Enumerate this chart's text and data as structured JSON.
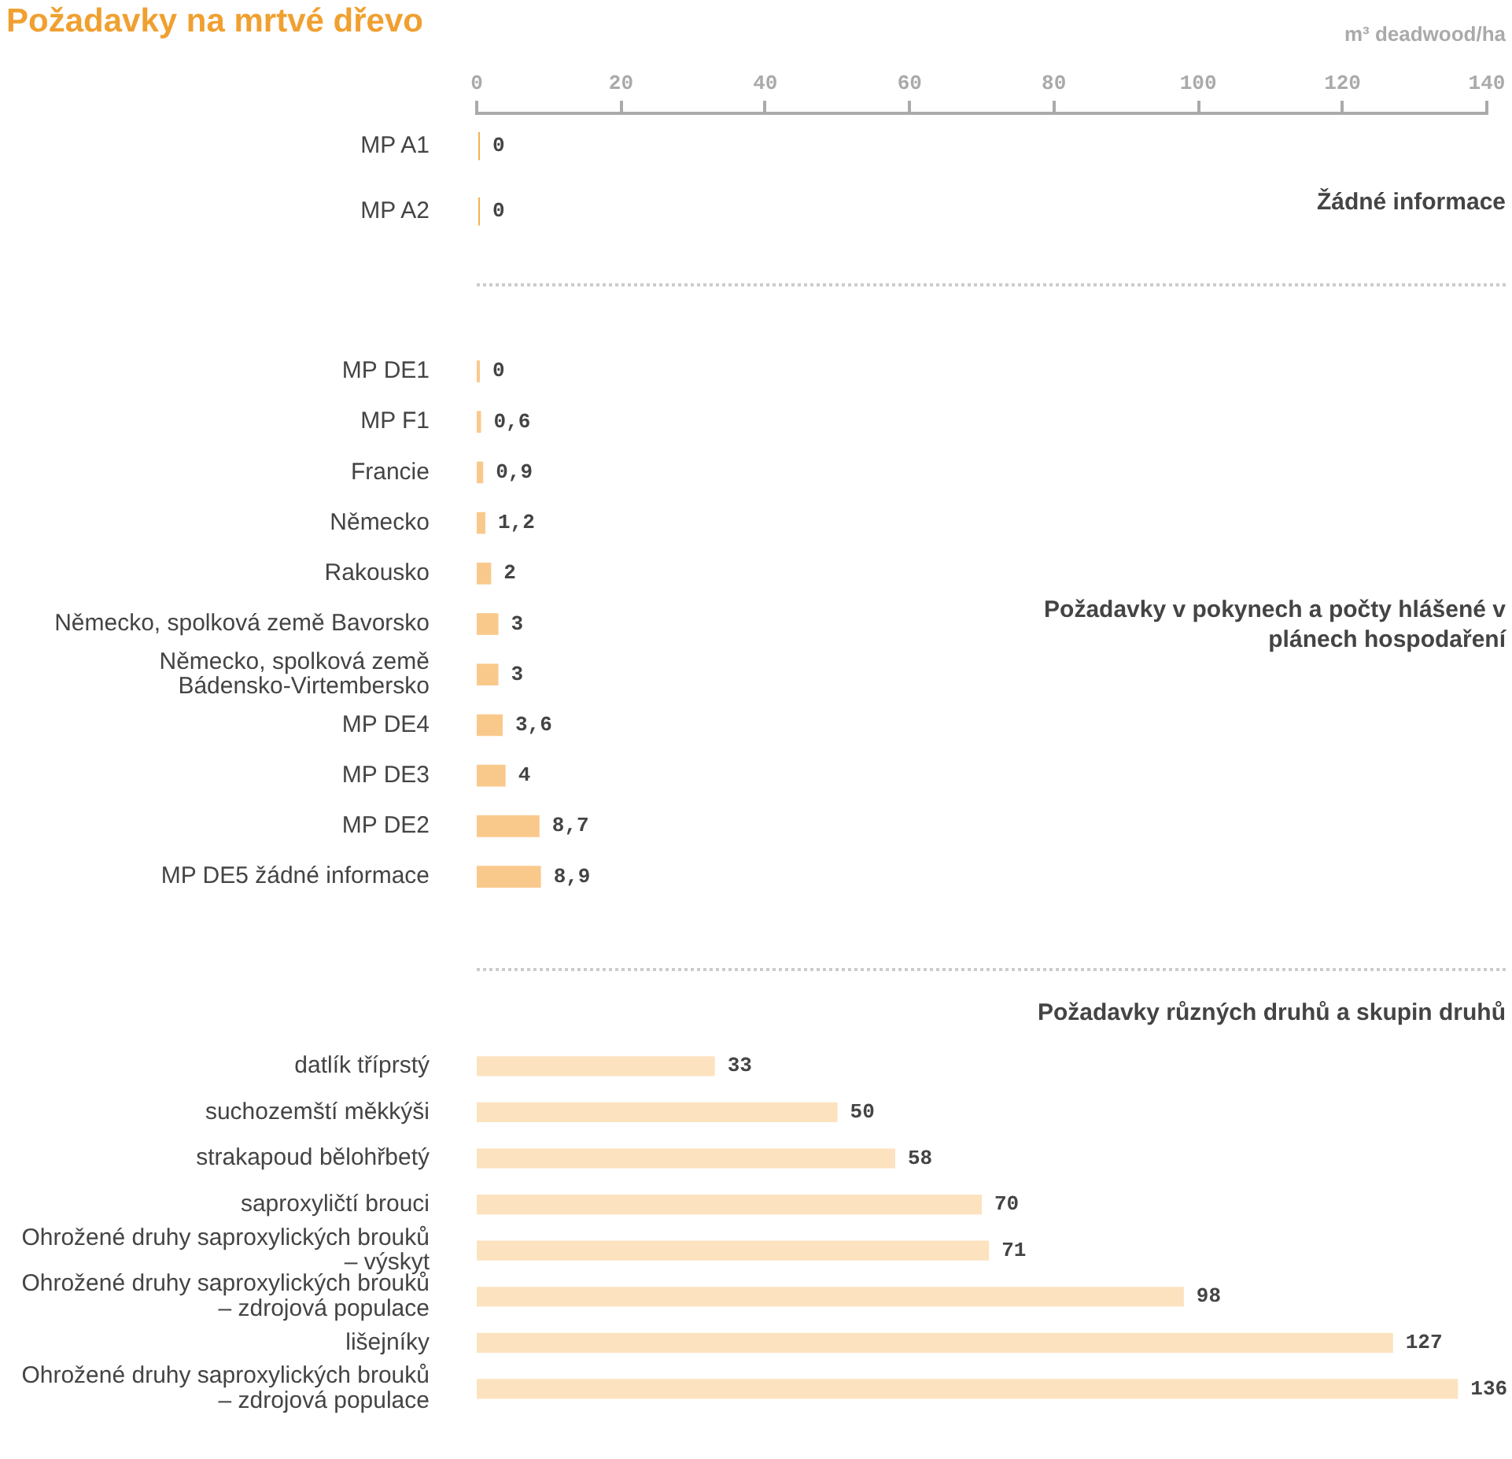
{
  "chart_data": [
    {
      "type": "bar",
      "title": "Požadavky na mrtvé dřevo",
      "xlabel": "m³ deadwood/ha",
      "orientation": "horizontal",
      "categories": [
        "MP A1",
        "MP A2"
      ],
      "values": [
        0,
        0
      ],
      "value_labels": [
        "0",
        "0"
      ],
      "color": "#f5b24e",
      "xlim": [
        0,
        140
      ],
      "xticks": [
        0,
        20,
        40,
        60,
        80,
        100,
        120,
        140
      ],
      "annotations": [
        "Žádné informace"
      ]
    },
    {
      "type": "bar",
      "orientation": "horizontal",
      "categories": [
        "MP DE1",
        "MP F1",
        "Francie",
        "Německo",
        "Rakousko",
        "Německo, spolková země Bavorsko",
        "Německo, spolková země Bádensko-Virtembersko",
        "MP DE4",
        "MP DE3",
        "MP DE2",
        "MP DE5 žádné informace"
      ],
      "values": [
        0,
        0.6,
        0.9,
        1.2,
        2,
        3,
        3,
        3.6,
        4,
        8.7,
        8.9
      ],
      "value_labels": [
        "0",
        "0,6",
        "0,9",
        "1,2",
        "2",
        "3",
        "3",
        "3,6",
        "4",
        "8,7",
        "8,9"
      ],
      "color": "#f9c98c",
      "xlim": [
        0,
        140
      ],
      "xticks": [
        0,
        20,
        40,
        60,
        80,
        100,
        120,
        140
      ],
      "tick_labels": "y",
      "annotations": [
        "Požadavky v pokynech a počty hlášené v plánech hospodaření"
      ]
    },
    {
      "type": "bar",
      "orientation": "horizontal",
      "categories": [
        "datlík tříprstý",
        "suchozemští měkkýši",
        "strakapoud bělohřbetý",
        "saproxyličtí brouci",
        "Ohrožené druhy saproxylických brouků – výskyt",
        "Ohrožené druhy saproxylických brouků – zdrojová populace",
        "lišejníky",
        "Ohrožené druhy saproxylických brouků – zdrojová populace"
      ],
      "values": [
        33,
        50,
        58,
        70,
        71,
        98,
        127,
        136
      ],
      "value_labels": [
        "33",
        "50",
        "58",
        "70",
        "71",
        "98",
        "127",
        "136"
      ],
      "color": "#fce2bf",
      "xlim": [
        0,
        140
      ],
      "xticks": [
        0,
        20,
        40,
        60,
        80,
        100,
        120,
        140
      ],
      "tick_labels": "y",
      "annotations": [
        "Požadavky různých druhů a skupin druhů"
      ]
    }
  ]
}
